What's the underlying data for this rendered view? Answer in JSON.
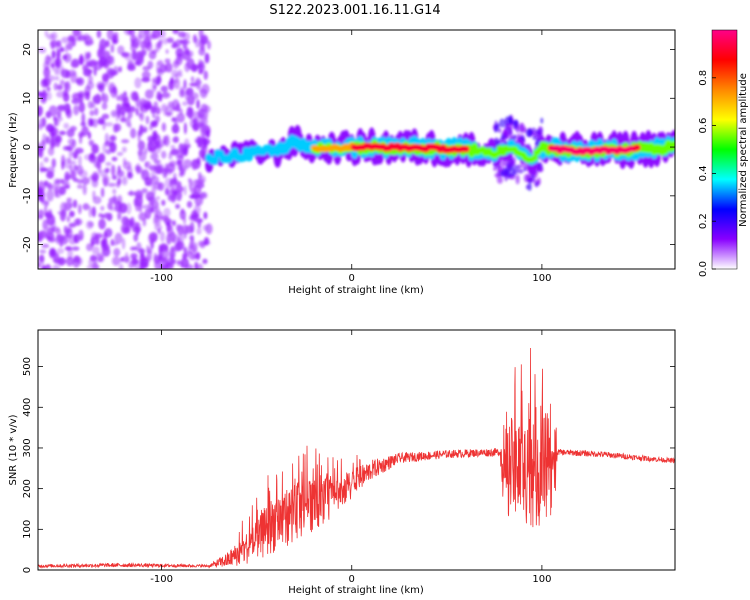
{
  "figure_title": "S122.2023.001.16.11.G14",
  "chart_data": [
    {
      "type": "heatmap",
      "xlabel": "Height of straight line (km)",
      "ylabel": "Frequency (Hz)",
      "xlim": [
        -165,
        170
      ],
      "ylim": [
        -25,
        24
      ],
      "xticks": [
        -100,
        0,
        100
      ],
      "xtick_labels": [
        "-100",
        "0",
        "100"
      ],
      "yticks": [
        -20,
        -10,
        0,
        10,
        20
      ],
      "ytick_labels": [
        "-20",
        "-10",
        "0",
        "10",
        "20"
      ],
      "colorbar": {
        "label": "Normalized spectral amplitude",
        "range": [
          0,
          1
        ],
        "ticks": [
          0,
          0.2,
          0.4,
          0.6,
          0.8
        ],
        "tick_labels": [
          "0.0",
          "0.2",
          "0.4",
          "0.6",
          "0.8"
        ],
        "colormap": [
          "#ffffff",
          "#8800ff",
          "#0000ff",
          "#00ffff",
          "#00ff00",
          "#ffff00",
          "#ff8800",
          "#ff0000",
          "#ff0088"
        ]
      },
      "regions": [
        {
          "x": [
            -165,
            -75
          ],
          "description": "scattered noise",
          "amplitude": 0.25
        },
        {
          "x": [
            -75,
            60
          ],
          "description": "carrier near 0 Hz",
          "amplitude": 0.8
        },
        {
          "x": [
            60,
            100
          ],
          "description": "scintillation",
          "amplitude": 0.5
        },
        {
          "x": [
            100,
            170
          ],
          "description": "carrier near -1 Hz",
          "amplitude": 0.9
        }
      ],
      "carrier_track": [
        [
          -75,
          -2.5
        ],
        [
          -60,
          -1.5
        ],
        [
          -40,
          -1.0
        ],
        [
          -30,
          1.2
        ],
        [
          -20,
          -0.3
        ],
        [
          0,
          0
        ],
        [
          20,
          0
        ],
        [
          40,
          -0.2
        ],
        [
          60,
          -0.5
        ],
        [
          75,
          -1.2
        ],
        [
          85,
          0
        ],
        [
          95,
          -3
        ],
        [
          100,
          -0.3
        ],
        [
          120,
          -0.8
        ],
        [
          140,
          -0.6
        ],
        [
          170,
          0
        ]
      ]
    },
    {
      "type": "line",
      "xlabel": "Height of straight line (km)",
      "ylabel": "SNR (10 * v/v)",
      "xlim": [
        -165,
        170
      ],
      "ylim": [
        0,
        590
      ],
      "xticks": [
        -100,
        0,
        100
      ],
      "xtick_labels": [
        "-100",
        "0",
        "100"
      ],
      "yticks": [
        0,
        100,
        200,
        300,
        400,
        500
      ],
      "ytick_labels": [
        "0",
        "100",
        "200",
        "300",
        "400",
        "500"
      ],
      "color": "#ee3333",
      "envelope": [
        {
          "x": -165,
          "base": 10,
          "noise": 8
        },
        {
          "x": -120,
          "base": 12,
          "noise": 10
        },
        {
          "x": -75,
          "base": 10,
          "noise": 6
        },
        {
          "x": -65,
          "base": 25,
          "noise": 40
        },
        {
          "x": -50,
          "base": 70,
          "noise": 100
        },
        {
          "x": -40,
          "base": 120,
          "noise": 150
        },
        {
          "x": -25,
          "base": 150,
          "noise": 140
        },
        {
          "x": -10,
          "base": 180,
          "noise": 100
        },
        {
          "x": 0,
          "base": 210,
          "noise": 70
        },
        {
          "x": 10,
          "base": 245,
          "noise": 50
        },
        {
          "x": 25,
          "base": 275,
          "noise": 25
        },
        {
          "x": 50,
          "base": 285,
          "noise": 20
        },
        {
          "x": 78,
          "base": 290,
          "noise": 20
        },
        {
          "x": 80,
          "base": 250,
          "noise": 240
        },
        {
          "x": 90,
          "base": 250,
          "noise": 270
        },
        {
          "x": 100,
          "base": 250,
          "noise": 320
        },
        {
          "x": 107,
          "base": 250,
          "noise": 200
        },
        {
          "x": 108,
          "base": 290,
          "noise": 15
        },
        {
          "x": 130,
          "base": 285,
          "noise": 15
        },
        {
          "x": 170,
          "base": 268,
          "noise": 12
        }
      ]
    }
  ]
}
